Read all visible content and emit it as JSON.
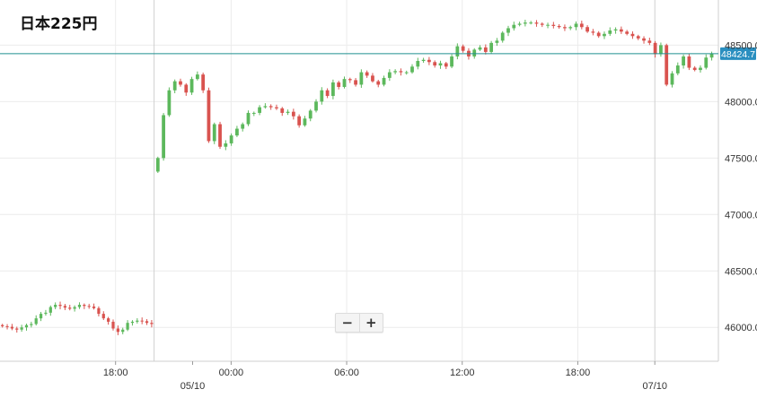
{
  "chart_data": {
    "type": "candlestick",
    "title": "日本225円",
    "current_price": "48424.7",
    "y_ticks": [
      "48500.0",
      "48000.0",
      "47500.0",
      "47000.0",
      "46500.0",
      "46000.0"
    ],
    "y_tick_values": [
      48500,
      48000,
      47500,
      47000,
      46500,
      46000
    ],
    "ylim": [
      45700,
      48900
    ],
    "x_ticks": [
      "18:00",
      "00:00",
      "06:00",
      "12:00",
      "18:00"
    ],
    "x_tick_hours": [
      18,
      24,
      30,
      36,
      42
    ],
    "date_labels": [
      "05/10",
      "07/10"
    ],
    "date_label_hours": [
      22,
      46
    ],
    "session_breaks_hours": [
      20,
      46
    ],
    "xlim_hours": [
      12,
      49.3
    ],
    "grid": true,
    "up_color": "#5cb85c",
    "down_color": "#d9534f",
    "price_line_color": "#1f8f8f",
    "session1_closes": [
      46010,
      46005,
      45990,
      45980,
      46000,
      46020,
      46030,
      46080,
      46120,
      46130,
      46180,
      46200,
      46190,
      46175,
      46165,
      46180,
      46200,
      46190,
      46185,
      46170,
      46120,
      46080,
      46050,
      45990,
      45960,
      45980,
      46040,
      46050,
      46060,
      46055,
      46040,
      46030
    ],
    "session2_closes": [
      47500,
      47880,
      48100,
      48180,
      48150,
      48080,
      48200,
      48240,
      48100,
      47650,
      47800,
      47600,
      47630,
      47700,
      47760,
      47800,
      47900,
      47900,
      47950,
      47960,
      47950,
      47940,
      47900,
      47910,
      47870,
      47790,
      47850,
      47920,
      48000,
      48100,
      48050,
      48170,
      48130,
      48200,
      48190,
      48150,
      48260,
      48230,
      48180,
      48150,
      48210,
      48260,
      48270,
      48260,
      48260,
      48310,
      48360,
      48370,
      48350,
      48320,
      48340,
      48310,
      48400,
      48490,
      48450,
      48400,
      48460,
      48480,
      48440,
      48520,
      48540,
      48610,
      48650,
      48680,
      48690,
      48700,
      48700,
      48690,
      48680,
      48680,
      48670,
      48660,
      48650,
      48660,
      48690,
      48660,
      48620,
      48610,
      48580,
      48600,
      48630,
      48640,
      48620,
      48600,
      48580,
      48560,
      48540,
      48520,
      48420,
      48500,
      48150,
      48250,
      48320,
      48400,
      48300,
      48280,
      48300,
      48390,
      48424.7
    ]
  }
}
